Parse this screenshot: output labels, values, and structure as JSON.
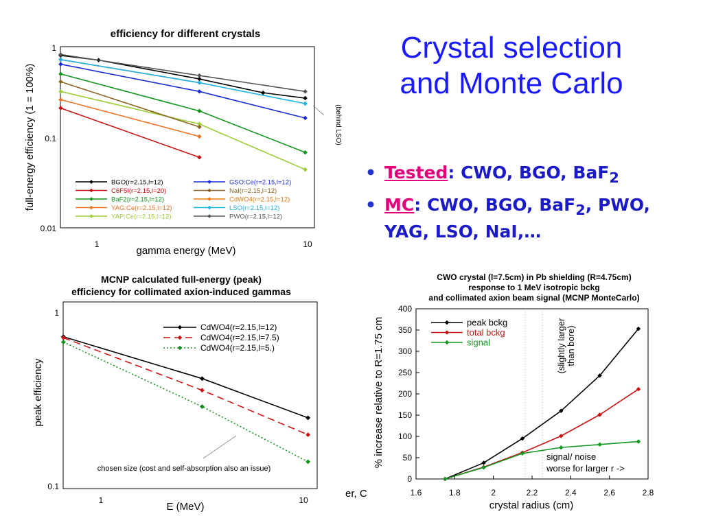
{
  "slide": {
    "title_line1": "Crystal selection",
    "title_line2": "and Monte Carlo",
    "bullets": [
      {
        "key": "Tested",
        "sep": ":",
        "text": " CWO, BGO, BaF",
        "sub": "2",
        "tail": ""
      },
      {
        "key": "MC",
        "sep": ":",
        "text": " CWO, BGO, BaF",
        "sub": "2",
        "tail": ", PWO, YAG, LSO, NaI,…"
      }
    ],
    "stray_text": "er, C"
  },
  "chart_data": [
    {
      "type": "line",
      "title": "efficiency for different crystals",
      "xlabel": "gamma energy (MeV)",
      "ylabel": "full-energy efficiency (1 = 100%)",
      "xscale": "log",
      "yscale": "log",
      "xlim": [
        0.66,
        10.5
      ],
      "ylim": [
        0.01,
        1
      ],
      "xticks": [
        "1",
        "10"
      ],
      "yticks": [
        "0.01",
        "0.1",
        "1"
      ],
      "annotation": "(behind LSO)",
      "legend": "bottom",
      "series": [
        {
          "name": "BGO(r=2.15,l=12)",
          "color": "#000000",
          "x": [
            0.662,
            1.0,
            3.0,
            6.0,
            9.5
          ],
          "y": [
            0.8,
            0.71,
            0.44,
            0.31,
            0.27
          ]
        },
        {
          "name": "C6F5I(r=2.15,l=20)",
          "color": "#c41010",
          "x": [
            0.662,
            3.0
          ],
          "y": [
            0.21,
            0.06
          ]
        },
        {
          "name": "BaF2(r=2.15,l=12)",
          "color": "#11951b",
          "x": [
            0.662,
            3.0,
            9.5
          ],
          "y": [
            0.5,
            0.195,
            0.068
          ]
        },
        {
          "name": "YAG:Ce(r=2.15,l=12)",
          "color": "#ec7422",
          "x": [
            0.662,
            3.0
          ],
          "y": [
            0.26,
            0.102
          ]
        },
        {
          "name": "YAP:Ce(r=2.15,l=12)",
          "color": "#9ccc35",
          "x": [
            0.662,
            3.0,
            9.5
          ],
          "y": [
            0.32,
            0.14,
            0.044
          ]
        },
        {
          "name": "GSO:Ce(r=2.15,l=12)",
          "color": "#1a2ad4",
          "x": [
            0.662,
            3.0,
            9.5
          ],
          "y": [
            0.64,
            0.32,
            0.163
          ]
        },
        {
          "name": "NaI(r=2.15,l=12)",
          "color": "#8a6320",
          "x": [
            0.662,
            3.0
          ],
          "y": [
            0.41,
            0.13
          ]
        },
        {
          "name": "CdWO4(r=2.15,l=12)",
          "color": "#e87a10",
          "x": [
            0.662,
            3.0
          ],
          "y": [
            0.72,
            0.4
          ]
        },
        {
          "name": "LSO(r=2.15,l=12)",
          "color": "#1bb2e8",
          "x": [
            0.662,
            3.0,
            9.5
          ],
          "y": [
            0.72,
            0.4,
            0.235
          ]
        },
        {
          "name": "PWO(r=2.15,l=12)",
          "color": "#555555",
          "x": [
            0.662,
            3.0,
            9.5
          ],
          "y": [
            0.82,
            0.48,
            0.32
          ]
        }
      ]
    },
    {
      "type": "line",
      "title": "MCNP calculated full-energy (peak)",
      "subtitle": "efficiency for collimated axion-induced gammas",
      "xlabel": "E (MeV)",
      "ylabel": "peak efficiency",
      "xscale": "log",
      "yscale": "log",
      "xlim": [
        0.66,
        10.5
      ],
      "ylim": [
        0.1,
        1
      ],
      "xticks": [
        "1",
        "10"
      ],
      "yticks": [
        "0.1",
        "1"
      ],
      "annotation": "chosen size (cost and self-absorption also an issue)",
      "legend": "top-right",
      "series": [
        {
          "name": "CdWO4(r=2.15,l=12)",
          "color": "#000000",
          "dash": "solid",
          "x": [
            0.662,
            3.0,
            9.5
          ],
          "y": [
            0.73,
            0.42,
            0.25
          ]
        },
        {
          "name": "CdWO4(r=2.15,l=7.5)",
          "color": "#d41212",
          "dash": "dashed",
          "x": [
            0.662,
            3.0,
            9.5
          ],
          "y": [
            0.72,
            0.36,
            0.2
          ]
        },
        {
          "name": "CdWO4(r=2.15,l=5.)",
          "color": "#12901a",
          "dash": "dotted",
          "x": [
            0.662,
            3.0,
            9.5
          ],
          "y": [
            0.68,
            0.29,
            0.14
          ]
        }
      ]
    },
    {
      "type": "line",
      "title": "CWO crystal (l=7.5cm) in Pb shielding (R=4.75cm)",
      "subtitle_lines": [
        "response to 1 MeV isotropic bckg",
        "and collimated axion beam signal (MCNP MonteCarlo)"
      ],
      "xlabel": "crystal radius (cm)",
      "ylabel": "% increase relative to R=1.75 cm",
      "xlim": [
        1.6,
        2.8
      ],
      "ylim": [
        0,
        400
      ],
      "xticks": [
        "1.6",
        "1.8",
        "2",
        "2.2",
        "2.4",
        "2.6",
        "2.8"
      ],
      "yticks": [
        "0",
        "50",
        "100",
        "150",
        "200",
        "250",
        "300",
        "350",
        "400"
      ],
      "annotations": [
        "(slightly larger",
        "than bore)",
        "signal/ noise",
        "worse for larger r ->"
      ],
      "legend": "top-left",
      "series": [
        {
          "name": "peak bckg",
          "color": "#000000",
          "x": [
            1.75,
            1.95,
            2.15,
            2.35,
            2.55,
            2.75
          ],
          "y": [
            0,
            38,
            95,
            160,
            243,
            353
          ]
        },
        {
          "name": "total bckg",
          "color": "#c81414",
          "x": [
            1.75,
            1.95,
            2.15,
            2.35,
            2.55,
            2.75
          ],
          "y": [
            0,
            28,
            62,
            101,
            151,
            211
          ]
        },
        {
          "name": "signal",
          "color": "#149622",
          "x": [
            1.75,
            1.95,
            2.15,
            2.35,
            2.55,
            2.75
          ],
          "y": [
            0,
            27,
            60,
            74,
            81,
            88
          ]
        }
      ]
    }
  ]
}
